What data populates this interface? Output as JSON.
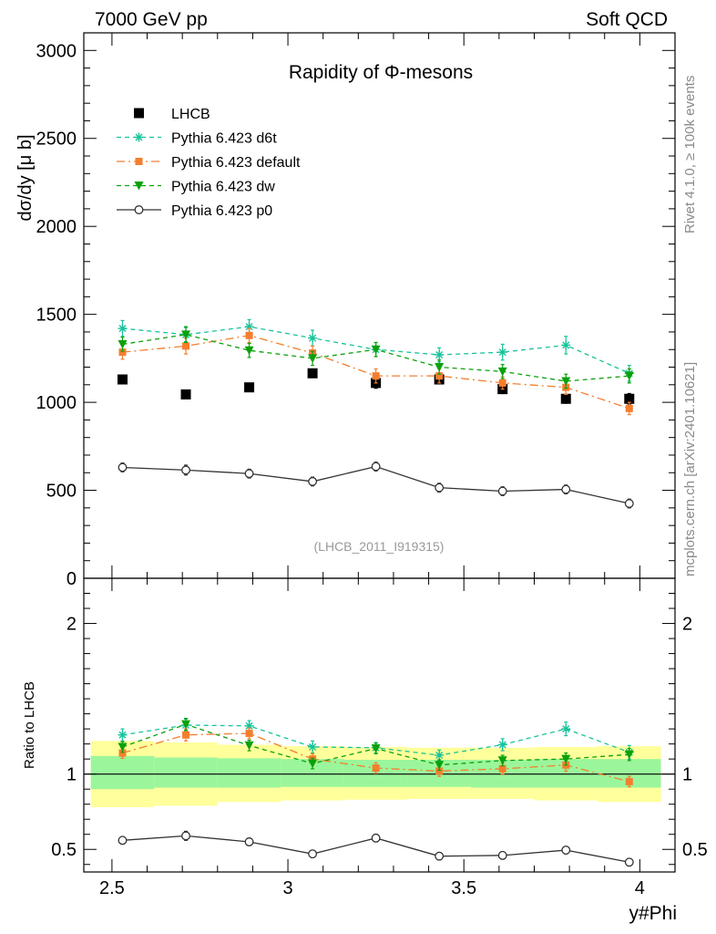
{
  "header": {
    "left": "7000 GeV pp",
    "right": "Soft QCD"
  },
  "side_labels": {
    "rivet": "Rivet 4.1.0, ≥ 100k events",
    "mcplots": "mcplots.cern.ch [arXiv:2401.10621]"
  },
  "chart_data": [
    {
      "type": "scatter",
      "panel": "main",
      "title": "Rapidity of Φ-mesons",
      "analysis_tag": "(LHCB_2011_I919315)",
      "xlabel": "y#Phi",
      "ylabel": "dσ/dy [μ b]",
      "xlim": [
        2.42,
        4.1
      ],
      "ylim": [
        0,
        3100
      ],
      "yticks": [
        0,
        500,
        1000,
        1500,
        2000,
        2500,
        3000
      ],
      "ytick_labels": [
        "0",
        "500",
        "1000",
        "1500",
        "2000",
        "2500",
        "3000"
      ],
      "x": [
        2.53,
        2.71,
        2.89,
        3.07,
        3.25,
        3.43,
        3.61,
        3.79,
        3.97
      ],
      "legend_position": "top-left",
      "series": [
        {
          "name": "LHCB",
          "style": "data",
          "color": "#000000",
          "values": [
            1130,
            1045,
            1085,
            1165,
            1110,
            1130,
            1075,
            1020,
            1020
          ],
          "errors": [
            20,
            15,
            15,
            20,
            30,
            25,
            25,
            25,
            30
          ]
        },
        {
          "name": "Pythia 6.423 d6t",
          "style": "star-dashed",
          "color": "#17c39b",
          "values": [
            1420,
            1385,
            1430,
            1365,
            1300,
            1270,
            1285,
            1325,
            1165
          ],
          "errors": [
            45,
            40,
            40,
            45,
            40,
            40,
            45,
            50,
            45
          ]
        },
        {
          "name": "Pythia 6.423 default",
          "style": "square-dashdot",
          "color": "#f47e2e",
          "values": [
            1285,
            1320,
            1380,
            1280,
            1150,
            1150,
            1110,
            1085,
            965
          ],
          "errors": [
            40,
            45,
            40,
            40,
            40,
            40,
            35,
            40,
            35
          ]
        },
        {
          "name": "Pythia 6.423 dw",
          "style": "triangle-dashed",
          "color": "#0ba10b",
          "values": [
            1330,
            1385,
            1295,
            1250,
            1300,
            1200,
            1175,
            1120,
            1150
          ],
          "errors": [
            40,
            45,
            40,
            40,
            40,
            40,
            40,
            40,
            40
          ]
        },
        {
          "name": "Pythia 6.423 p0",
          "style": "circle-solid",
          "color": "#333333",
          "values": [
            630,
            615,
            595,
            550,
            635,
            515,
            495,
            505,
            425
          ],
          "errors": [
            25,
            28,
            25,
            25,
            25,
            25,
            25,
            25,
            25
          ]
        }
      ]
    },
    {
      "type": "scatter",
      "panel": "ratio",
      "ylabel": "Ratio to LHCB",
      "xlabel": "y#Phi",
      "xlim": [
        2.42,
        4.1
      ],
      "ylim": [
        0.35,
        2.3
      ],
      "yticks": [
        0.5,
        1,
        2
      ],
      "ytick_labels": [
        "0.5",
        "1",
        "2"
      ],
      "xticks": [
        2.5,
        3,
        3.5,
        4
      ],
      "xtick_labels": [
        "2.5",
        "3",
        "3.5",
        "4"
      ],
      "x": [
        2.53,
        2.71,
        2.89,
        3.07,
        3.25,
        3.43,
        3.61,
        3.79,
        3.97
      ],
      "bin_edges": [
        2.44,
        2.62,
        2.8,
        2.98,
        3.16,
        3.34,
        3.52,
        3.7,
        3.88,
        4.06
      ],
      "uncertainty_bands": {
        "stat_color": "#9bf69b",
        "syst_color": "#ffff9b",
        "stat_lo": [
          0.9,
          0.91,
          0.91,
          0.915,
          0.915,
          0.915,
          0.91,
          0.91,
          0.91
        ],
        "stat_hi": [
          1.12,
          1.11,
          1.105,
          1.1,
          1.095,
          1.095,
          1.095,
          1.1,
          1.1
        ],
        "syst_lo": [
          0.78,
          0.79,
          0.815,
          0.825,
          0.83,
          0.835,
          0.835,
          0.825,
          0.815
        ],
        "syst_hi": [
          1.22,
          1.21,
          1.195,
          1.185,
          1.18,
          1.175,
          1.175,
          1.18,
          1.185
        ]
      },
      "series": [
        {
          "name": "Pythia 6.423 d6t",
          "style": "star-dashed",
          "color": "#17c39b",
          "values": [
            1.26,
            1.325,
            1.32,
            1.18,
            1.175,
            1.125,
            1.195,
            1.3,
            1.145
          ],
          "errors": [
            0.04,
            0.04,
            0.035,
            0.04,
            0.035,
            0.035,
            0.04,
            0.045,
            0.045
          ]
        },
        {
          "name": "Pythia 6.423 default",
          "style": "square-dashdot",
          "color": "#f47e2e",
          "values": [
            1.14,
            1.26,
            1.27,
            1.1,
            1.04,
            1.02,
            1.035,
            1.06,
            0.95
          ],
          "errors": [
            0.035,
            0.04,
            0.035,
            0.035,
            0.035,
            0.035,
            0.035,
            0.04,
            0.035
          ]
        },
        {
          "name": "Pythia 6.423 dw",
          "style": "triangle-dashed",
          "color": "#0ba10b",
          "values": [
            1.18,
            1.33,
            1.19,
            1.07,
            1.17,
            1.06,
            1.09,
            1.1,
            1.13
          ],
          "errors": [
            0.035,
            0.04,
            0.035,
            0.035,
            0.035,
            0.035,
            0.035,
            0.04,
            0.04
          ]
        },
        {
          "name": "Pythia 6.423 p0",
          "style": "circle-solid",
          "color": "#333333",
          "values": [
            0.56,
            0.59,
            0.55,
            0.47,
            0.575,
            0.455,
            0.46,
            0.495,
            0.415
          ],
          "errors": [
            0.025,
            0.03,
            0.025,
            0.025,
            0.025,
            0.025,
            0.025,
            0.025,
            0.025
          ]
        }
      ]
    }
  ]
}
